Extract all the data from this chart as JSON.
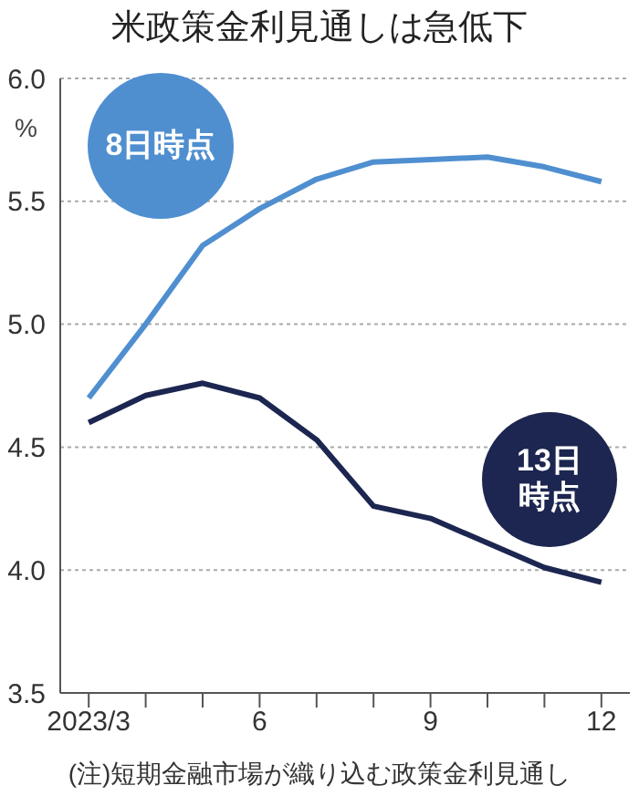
{
  "chart_data": {
    "type": "line",
    "title": "米政策金利見通しは急低下",
    "ylabel": "%",
    "categories": [
      "2023/3",
      null,
      null,
      "6",
      null,
      null,
      "9",
      null,
      null,
      "12"
    ],
    "series": [
      {
        "name": "8日時点",
        "color": "#4f8fd0",
        "values": [
          4.7,
          5.0,
          5.32,
          5.47,
          5.59,
          5.66,
          5.67,
          5.68,
          5.64,
          5.58
        ]
      },
      {
        "name": "13日時点",
        "color": "#1c2650",
        "values": [
          4.6,
          4.71,
          4.76,
          4.7,
          4.53,
          4.26,
          4.21,
          4.11,
          4.01,
          3.95
        ]
      }
    ],
    "ylim": [
      3.5,
      6.0
    ],
    "yticks": [
      {
        "value": 3.5,
        "label": "3.5"
      },
      {
        "value": 4,
        "label": "4.0"
      },
      {
        "value": 4.5,
        "label": "4.5"
      },
      {
        "value": 5,
        "label": "5.0"
      },
      {
        "value": 5.5,
        "label": "5.5"
      },
      {
        "value": 6,
        "label": "6.0"
      }
    ],
    "grid": "y",
    "marker": "none",
    "line_style": "solid",
    "annotations": [
      "(注)短期金融市場が織り込む政策金利見通し"
    ]
  }
}
